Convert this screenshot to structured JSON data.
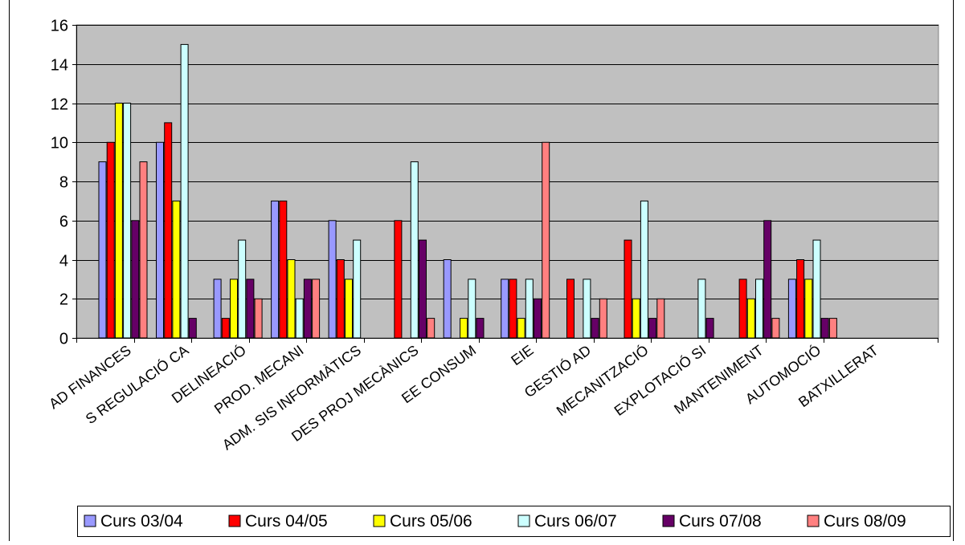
{
  "chart_data": {
    "type": "bar",
    "title": "",
    "xlabel": "",
    "ylabel": "",
    "ylim": [
      0,
      16
    ],
    "yticks": [
      0,
      2,
      4,
      6,
      8,
      10,
      12,
      14,
      16
    ],
    "grid": true,
    "legend_position": "bottom",
    "plot_background": "#c0c0c0",
    "categories": [
      "AD FINANCES",
      "S REGULACIÓ CA",
      "DELINEACIÓ",
      "PROD. MECANI",
      "ADM. SIS INFORMÀTICS",
      "DES PROJ MECÀNICS",
      "EE CONSUM",
      "EIE",
      "GESTIÓ AD",
      "MECANITZACIÓ",
      "EXPLOTACIÓ SI",
      "MANTENIMENT",
      "AUTOMOCIÓ",
      "BATXILLERAT"
    ],
    "series": [
      {
        "name": "Curs 03/04",
        "color": "#9999ff",
        "values": [
          9,
          10,
          3,
          7,
          6,
          0,
          4,
          3,
          0,
          0,
          0,
          0,
          3,
          0
        ]
      },
      {
        "name": "Curs 04/05",
        "color": "#ff0000",
        "values": [
          10,
          11,
          1,
          7,
          4,
          6,
          0,
          3,
          3,
          5,
          0,
          3,
          4,
          0
        ]
      },
      {
        "name": "Curs 05/06",
        "color": "#ffff00",
        "values": [
          12,
          7,
          3,
          4,
          3,
          0,
          1,
          1,
          0,
          2,
          0,
          2,
          3,
          0
        ]
      },
      {
        "name": "Curs 06/07",
        "color": "#ccffff",
        "values": [
          12,
          15,
          5,
          2,
          5,
          9,
          3,
          3,
          3,
          7,
          3,
          3,
          5,
          0
        ]
      },
      {
        "name": "Curs 07/08",
        "color": "#660066",
        "values": [
          6,
          1,
          3,
          3,
          0,
          5,
          1,
          2,
          1,
          1,
          1,
          6,
          1,
          0
        ]
      },
      {
        "name": "Curs 08/09",
        "color": "#ff8080",
        "values": [
          9,
          0,
          2,
          3,
          0,
          1,
          0,
          10,
          2,
          2,
          0,
          1,
          1,
          0
        ]
      }
    ]
  }
}
